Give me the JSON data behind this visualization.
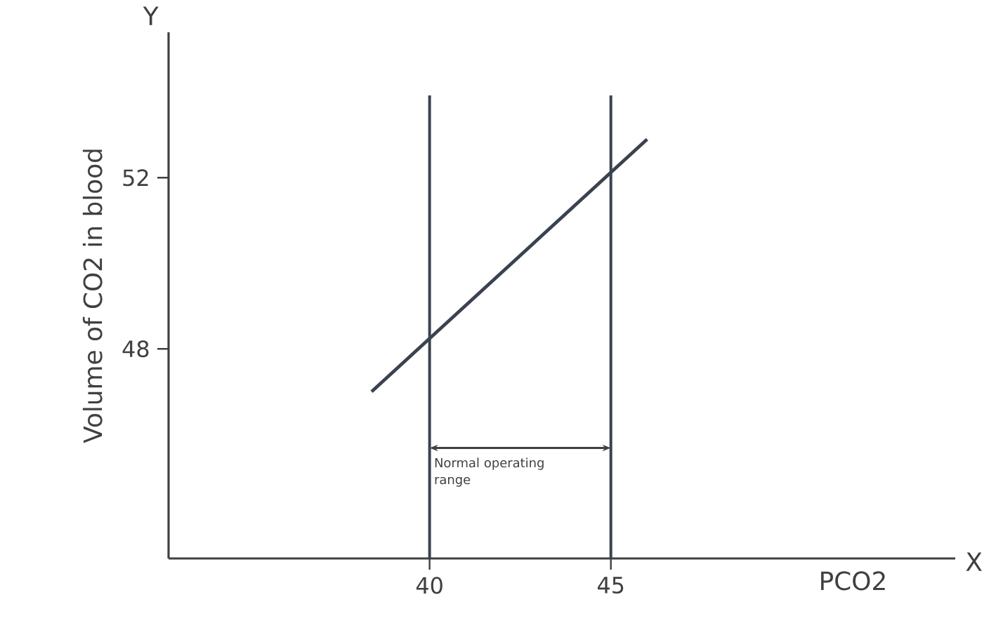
{
  "chart_data": {
    "type": "line",
    "xlabel": "PCO2",
    "ylabel": "Volume of CO2 in blood",
    "x": [
      38.4,
      46.0
    ],
    "series": [
      {
        "color": "#3a4250",
        "values": [
          47.0,
          52.9
        ]
      }
    ],
    "xlim": [
      32.8,
      54.5
    ],
    "ylim": [
      43.1,
      55.4
    ],
    "xticks": [
      40,
      45
    ],
    "yticks": [
      48,
      52
    ],
    "ref_lines": [
      {
        "axis": "x",
        "value": 40,
        "color": "#3a4250"
      },
      {
        "axis": "x",
        "value": 45,
        "color": "#3a4250"
      }
    ],
    "annotations": [
      "Y",
      "X",
      "Normal operating range"
    ],
    "grid": false,
    "marker": "none",
    "line_style": "solid"
  }
}
